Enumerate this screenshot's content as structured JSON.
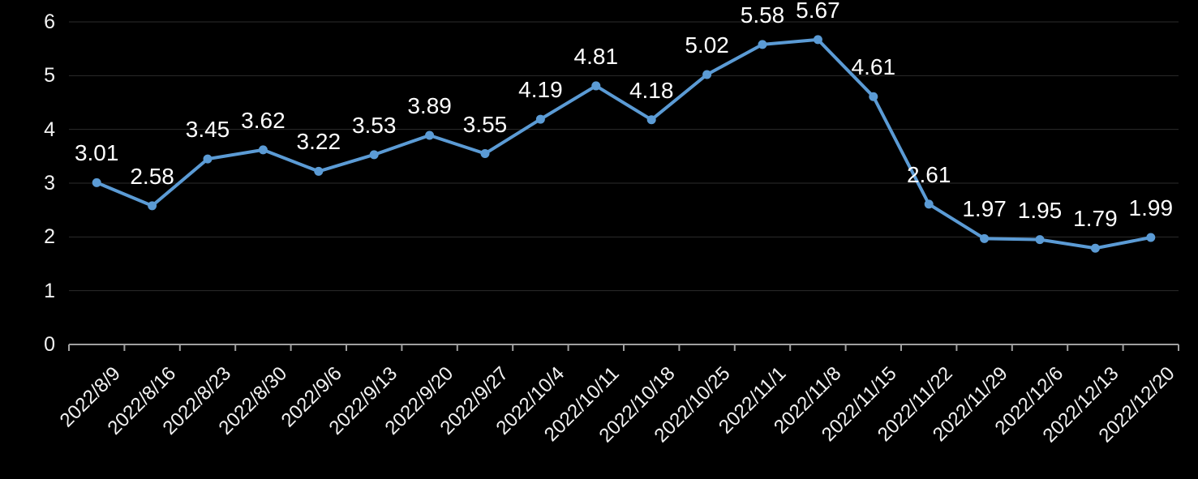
{
  "chart_data": {
    "type": "line",
    "title": "",
    "xlabel": "",
    "ylabel": "",
    "categories": [
      "2022/8/9",
      "2022/8/16",
      "2022/8/23",
      "2022/8/30",
      "2022/9/6",
      "2022/9/13",
      "2022/9/20",
      "2022/9/27",
      "2022/10/4",
      "2022/10/11",
      "2022/10/18",
      "2022/10/25",
      "2022/11/1",
      "2022/11/8",
      "2022/11/15",
      "2022/11/22",
      "2022/11/29",
      "2022/12/6",
      "2022/12/13",
      "2022/12/20"
    ],
    "series": [
      {
        "name": "",
        "values": [
          3.01,
          2.58,
          3.45,
          3.62,
          3.22,
          3.53,
          3.89,
          3.55,
          4.19,
          4.81,
          4.18,
          5.02,
          5.58,
          5.67,
          4.61,
          2.61,
          1.97,
          1.95,
          1.79,
          1.99
        ],
        "data_labels": [
          "3.01",
          "2.58",
          "3.45",
          "3.62",
          "3.22",
          "3.53",
          "3.89",
          "3.55",
          "4.19",
          "4.81",
          "4.18",
          "5.02",
          "5.58",
          "5.67",
          "4.61",
          "2.61",
          "1.97",
          "1.95",
          "1.79",
          "1.99"
        ]
      }
    ],
    "ylim": [
      0,
      6
    ],
    "yticks": [
      0,
      1,
      2,
      3,
      4,
      5,
      6
    ],
    "ytick_labels": [
      "0",
      "1",
      "2",
      "3",
      "4",
      "5",
      "6"
    ],
    "grid": true,
    "legend": "none",
    "marker": "circle",
    "line_smooth": false
  },
  "style": {
    "background_color": "#000000",
    "line_color": "#5B9BD5",
    "marker_color": "#5B9BD5",
    "gridline_color": "#2b2b2b",
    "axis_color": "#a0a0a0",
    "axis_label_color": "#f2f2f2",
    "data_label_color": "#ffffff"
  }
}
